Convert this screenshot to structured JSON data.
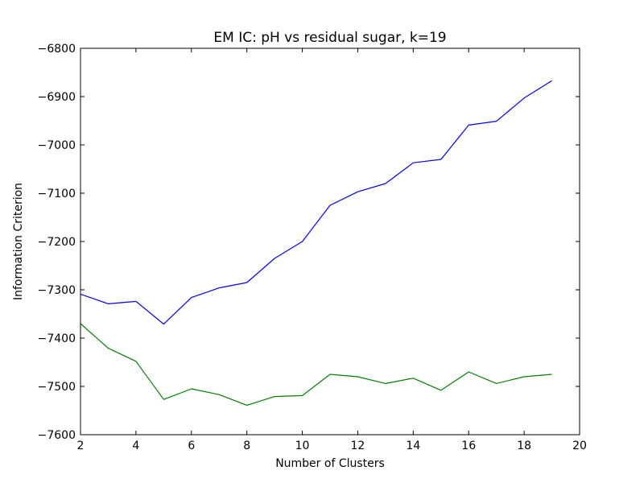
{
  "chart_data": {
    "type": "line",
    "title": "EM IC: pH vs residual sugar, k=19",
    "xlabel": "Number of Clusters",
    "ylabel": "Information Criterion",
    "xlim": [
      2,
      20
    ],
    "ylim": [
      -7600,
      -6800
    ],
    "xticks": [
      2,
      4,
      6,
      8,
      10,
      12,
      14,
      16,
      18,
      20
    ],
    "yticks": [
      -7600,
      -7500,
      -7400,
      -7300,
      -7200,
      -7100,
      -7000,
      -6900,
      -6800
    ],
    "xtick_labels": [
      "2",
      "4",
      "6",
      "8",
      "10",
      "12",
      "14",
      "16",
      "18",
      "20"
    ],
    "ytick_labels": [
      "−7600",
      "−7500",
      "−7400",
      "−7300",
      "−7200",
      "−7100",
      "−7000",
      "−6900",
      "−6800"
    ],
    "grid": false,
    "x": [
      2,
      3,
      4,
      5,
      6,
      7,
      8,
      9,
      10,
      11,
      12,
      13,
      14,
      15,
      16,
      17,
      18,
      19
    ],
    "series": [
      {
        "color": "#0000ff",
        "values": [
          -7309,
          -7329,
          -7324,
          -7371,
          -7316,
          -7296,
          -7285,
          -7235,
          -7200,
          -7125,
          -7097,
          -7080,
          -7037,
          -7030,
          -6959,
          -6951,
          -6903,
          -6867
        ]
      },
      {
        "color": "#008000",
        "values": [
          -7370,
          -7421,
          -7448,
          -7527,
          -7505,
          -7517,
          -7539,
          -7521,
          -7519,
          -7475,
          -7480,
          -7494,
          -7483,
          -7508,
          -7470,
          -7494,
          -7480,
          -7475
        ]
      }
    ]
  }
}
